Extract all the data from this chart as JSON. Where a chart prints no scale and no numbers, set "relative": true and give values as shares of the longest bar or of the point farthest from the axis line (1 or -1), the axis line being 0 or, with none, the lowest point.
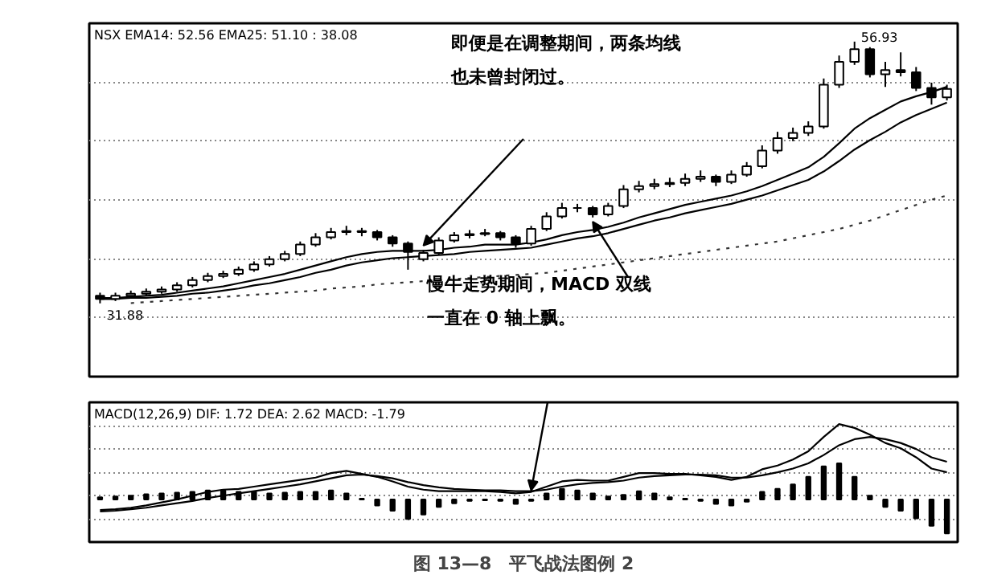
{
  "chart_data": [
    {
      "type": "candlestick",
      "title": "NSX EMA14: 52.56 EMA25: 51.10 : 38.08",
      "tick_labels": false,
      "grid": "y",
      "categories": [
        null,
        null,
        null,
        null,
        null,
        null,
        null,
        null,
        null,
        null,
        null,
        null,
        null,
        null,
        null,
        null,
        null,
        null,
        null,
        null,
        null,
        null,
        null,
        null,
        null,
        null,
        null,
        null,
        null,
        null,
        null,
        null,
        null,
        null,
        null,
        null,
        null,
        null,
        null,
        null,
        null,
        null,
        null,
        null,
        null,
        null,
        null,
        null,
        null,
        null,
        null,
        null,
        null,
        null,
        null,
        null
      ],
      "ohlc": [
        [
          32.6,
          32.9,
          31.88,
          32.3
        ],
        [
          32.3,
          32.9,
          32.1,
          32.6
        ],
        [
          32.6,
          33.1,
          32.4,
          32.8
        ],
        [
          32.8,
          33.3,
          32.6,
          33.0
        ],
        [
          33.0,
          33.5,
          32.8,
          33.2
        ],
        [
          33.2,
          33.9,
          33.0,
          33.6
        ],
        [
          33.6,
          34.4,
          33.4,
          34.1
        ],
        [
          34.1,
          34.8,
          33.9,
          34.5
        ],
        [
          34.5,
          35.0,
          34.3,
          34.7
        ],
        [
          34.7,
          35.4,
          34.5,
          35.1
        ],
        [
          35.1,
          35.9,
          34.9,
          35.6
        ],
        [
          35.6,
          36.4,
          35.4,
          36.1
        ],
        [
          36.1,
          36.9,
          35.9,
          36.6
        ],
        [
          36.6,
          37.8,
          36.4,
          37.5
        ],
        [
          37.5,
          38.6,
          37.3,
          38.2
        ],
        [
          38.2,
          39.1,
          38.0,
          38.7
        ],
        [
          38.7,
          39.3,
          38.4,
          38.8
        ],
        [
          38.8,
          39.1,
          38.3,
          38.7
        ],
        [
          38.7,
          38.9,
          37.9,
          38.2
        ],
        [
          38.2,
          38.4,
          37.3,
          37.6
        ],
        [
          37.6,
          37.8,
          35.1,
          36.8
        ],
        [
          36.1,
          37.0,
          35.9,
          36.7
        ],
        [
          36.7,
          38.2,
          36.5,
          37.9
        ],
        [
          37.9,
          38.7,
          37.7,
          38.4
        ],
        [
          38.4,
          38.9,
          38.1,
          38.5
        ],
        [
          38.5,
          39.0,
          38.3,
          38.6
        ],
        [
          38.6,
          38.8,
          37.9,
          38.2
        ],
        [
          38.2,
          38.4,
          37.2,
          37.6
        ],
        [
          37.6,
          39.3,
          37.4,
          39.0
        ],
        [
          39.0,
          40.6,
          38.8,
          40.2
        ],
        [
          40.2,
          41.5,
          40.0,
          41.0
        ],
        [
          41.0,
          41.4,
          40.6,
          41.0
        ],
        [
          41.0,
          41.2,
          40.1,
          40.4
        ],
        [
          40.4,
          41.5,
          40.2,
          41.2
        ],
        [
          41.2,
          43.2,
          41.0,
          42.8
        ],
        [
          42.8,
          43.6,
          42.5,
          43.1
        ],
        [
          43.1,
          43.8,
          42.8,
          43.3
        ],
        [
          43.3,
          43.9,
          43.0,
          43.4
        ],
        [
          43.4,
          44.3,
          43.1,
          43.8
        ],
        [
          43.8,
          44.6,
          43.5,
          44.0
        ],
        [
          44.0,
          44.2,
          43.1,
          43.5
        ],
        [
          43.5,
          44.6,
          43.3,
          44.2
        ],
        [
          44.2,
          45.4,
          44.0,
          45.0
        ],
        [
          45.0,
          47.0,
          44.8,
          46.5
        ],
        [
          46.5,
          48.3,
          46.2,
          47.7
        ],
        [
          47.7,
          48.7,
          47.4,
          48.2
        ],
        [
          48.2,
          49.3,
          47.9,
          48.8
        ],
        [
          48.8,
          53.4,
          48.6,
          52.8
        ],
        [
          52.8,
          55.6,
          52.5,
          55.0
        ],
        [
          55.0,
          56.93,
          54.7,
          56.2
        ],
        [
          56.2,
          56.4,
          53.5,
          53.8
        ],
        [
          53.8,
          55.0,
          52.6,
          54.2
        ],
        [
          54.2,
          55.9,
          53.6,
          54.0
        ],
        [
          54.0,
          54.5,
          52.2,
          52.5
        ],
        [
          52.5,
          53.0,
          50.9,
          51.6
        ],
        [
          51.6,
          52.8,
          51.3,
          52.4
        ]
      ],
      "series": [
        {
          "type": "line",
          "color": "#000000",
          "line_style": "solid",
          "values": [
            32.4,
            32.4,
            32.5,
            32.6,
            32.7,
            32.9,
            33.1,
            33.3,
            33.5,
            33.8,
            34.1,
            34.4,
            34.7,
            35.1,
            35.5,
            35.9,
            36.3,
            36.6,
            36.8,
            36.9,
            36.9,
            36.9,
            37.0,
            37.2,
            37.3,
            37.5,
            37.5,
            37.5,
            37.7,
            38.0,
            38.4,
            38.7,
            38.9,
            39.2,
            39.6,
            40.1,
            40.5,
            40.9,
            41.3,
            41.6,
            41.9,
            42.2,
            42.6,
            43.1,
            43.7,
            44.3,
            44.9,
            45.9,
            47.2,
            48.6,
            49.6,
            50.4,
            51.2,
            51.7,
            52.1,
            52.6
          ]
        },
        {
          "type": "line",
          "color": "#000000",
          "line_style": "solid",
          "values": [
            32.3,
            32.3,
            32.4,
            32.4,
            32.5,
            32.6,
            32.8,
            32.9,
            33.1,
            33.3,
            33.6,
            33.8,
            34.1,
            34.4,
            34.8,
            35.1,
            35.5,
            35.8,
            36.0,
            36.2,
            36.3,
            36.4,
            36.5,
            36.6,
            36.8,
            36.9,
            37.0,
            37.1,
            37.2,
            37.5,
            37.8,
            38.1,
            38.3,
            38.6,
            39.0,
            39.4,
            39.8,
            40.1,
            40.5,
            40.8,
            41.1,
            41.4,
            41.8,
            42.2,
            42.7,
            43.2,
            43.7,
            44.5,
            45.5,
            46.6,
            47.5,
            48.3,
            49.2,
            49.9,
            50.5,
            51.1
          ]
        },
        {
          "type": "line",
          "color": "#333333",
          "line_style": "dotted",
          "values": [
            null,
            null,
            31.9,
            32.0,
            32.1,
            32.2,
            32.3,
            32.4,
            32.5,
            32.6,
            32.7,
            32.8,
            32.9,
            33.0,
            33.1,
            33.3,
            33.4,
            33.5,
            33.7,
            33.8,
            33.9,
            34.0,
            34.1,
            34.2,
            34.3,
            34.4,
            34.5,
            34.6,
            34.7,
            34.8,
            35.0,
            35.2,
            35.4,
            35.6,
            35.8,
            36.0,
            36.2,
            36.4,
            36.6,
            36.8,
            37.0,
            37.2,
            37.4,
            37.6,
            37.8,
            38.1,
            38.4,
            38.7,
            39.0,
            39.4,
            39.8,
            40.3,
            40.8,
            41.3,
            41.8,
            42.2
          ]
        }
      ],
      "annotations": [
        "56.93",
        "31.88",
        "即便是在调整期间，两条均线也未曾封闭过。",
        "慢牛走势期间，MACD 双线一直在 0 轴上飘。"
      ]
    },
    {
      "type": "bar",
      "title": "MACD(12,26,9) DIF: 1.72 DEA: 2.62 MACD: -1.79",
      "relative": true,
      "tick_labels": false,
      "grid": "y",
      "categories": [
        null,
        null,
        null,
        null,
        null,
        null,
        null,
        null,
        null,
        null,
        null,
        null,
        null,
        null,
        null,
        null,
        null,
        null,
        null,
        null,
        null,
        null,
        null,
        null,
        null,
        null,
        null,
        null,
        null,
        null,
        null,
        null,
        null,
        null,
        null,
        null,
        null,
        null,
        null,
        null,
        null,
        null,
        null,
        null,
        null,
        null,
        null,
        null,
        null,
        null,
        null,
        null,
        null,
        null,
        null,
        null
      ],
      "series": [
        {
          "type": "bar",
          "color": "#000000",
          "values": [
            0.03,
            0.04,
            0.05,
            0.07,
            0.08,
            0.09,
            0.1,
            0.12,
            0.12,
            0.1,
            0.1,
            0.08,
            0.09,
            0.1,
            0.1,
            0.12,
            0.08,
            0.01,
            -0.08,
            -0.15,
            -0.26,
            -0.2,
            -0.1,
            -0.05,
            -0.02,
            -0.01,
            -0.02,
            -0.06,
            -0.02,
            0.08,
            0.14,
            0.12,
            0.08,
            0.04,
            0.06,
            0.11,
            0.08,
            0.03,
            0.01,
            -0.02,
            -0.06,
            -0.08,
            -0.03,
            0.1,
            0.14,
            0.2,
            0.3,
            0.44,
            0.48,
            0.3,
            0.05,
            -0.1,
            -0.15,
            -0.25,
            -0.35,
            -0.45
          ]
        },
        {
          "type": "line",
          "color": "#000000",
          "line_style": "solid",
          "values": [
            -0.14,
            -0.13,
            -0.11,
            -0.08,
            -0.04,
            0.0,
            0.05,
            0.1,
            0.13,
            0.14,
            0.17,
            0.2,
            0.23,
            0.26,
            0.29,
            0.35,
            0.38,
            0.34,
            0.3,
            0.24,
            0.17,
            0.13,
            0.11,
            0.11,
            0.11,
            0.11,
            0.1,
            0.08,
            0.1,
            0.17,
            0.24,
            0.26,
            0.25,
            0.25,
            0.3,
            0.35,
            0.35,
            0.34,
            0.34,
            0.32,
            0.3,
            0.26,
            0.3,
            0.4,
            0.45,
            0.53,
            0.64,
            0.83,
            1.0,
            0.95,
            0.86,
            0.75,
            0.68,
            0.56,
            0.41,
            0.36
          ]
        },
        {
          "type": "line",
          "color": "#000000",
          "line_style": "solid",
          "values": [
            -0.16,
            -0.15,
            -0.13,
            -0.11,
            -0.08,
            -0.05,
            -0.02,
            0.02,
            0.05,
            0.08,
            0.11,
            0.14,
            0.17,
            0.2,
            0.24,
            0.28,
            0.32,
            0.33,
            0.31,
            0.28,
            0.23,
            0.19,
            0.16,
            0.14,
            0.13,
            0.12,
            0.12,
            0.11,
            0.11,
            0.13,
            0.17,
            0.2,
            0.22,
            0.23,
            0.25,
            0.29,
            0.31,
            0.32,
            0.33,
            0.33,
            0.32,
            0.29,
            0.29,
            0.32,
            0.36,
            0.41,
            0.48,
            0.59,
            0.72,
            0.8,
            0.83,
            0.8,
            0.75,
            0.67,
            0.56,
            0.5
          ]
        }
      ],
      "annotations": [
        "图 13—8　平飞战法图例 2"
      ]
    }
  ]
}
